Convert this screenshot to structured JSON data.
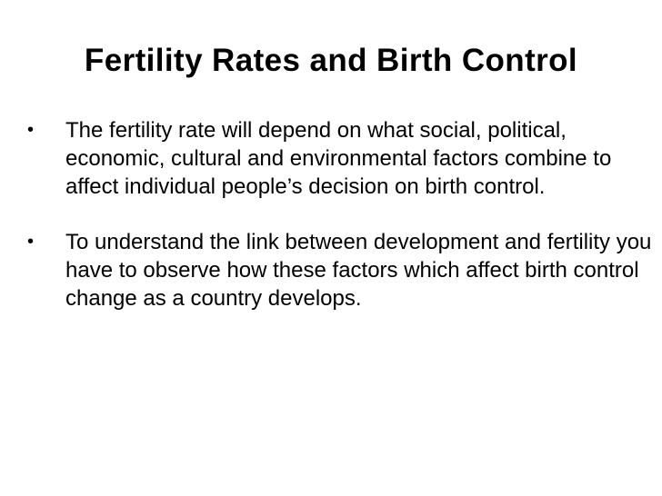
{
  "slide": {
    "title": "Fertility Rates and Birth Control",
    "bullet_symbol": "•",
    "bullets": [
      {
        "text": "The fertility rate will depend on what social, political, economic, cultural and environmental factors combine to affect individual people’s decision on birth control."
      },
      {
        "text": "To understand the link between development and fertility you have to observe how these factors which affect birth control change as a country develops."
      }
    ]
  }
}
